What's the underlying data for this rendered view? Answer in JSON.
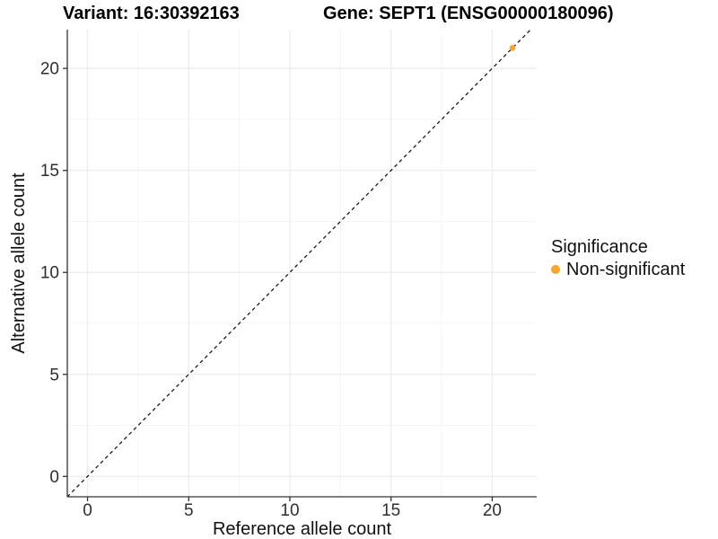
{
  "chart_data": {
    "type": "scatter",
    "title_variant": "Variant: 16:30392163",
    "title_gene": "Gene: SEPT1 (ENSG00000180096)",
    "xlabel": "Reference allele count",
    "ylabel": "Alternative allele count",
    "xlim": [
      -1,
      22.2
    ],
    "ylim": [
      -1,
      21.9
    ],
    "xticks": [
      0,
      5,
      10,
      15,
      20
    ],
    "yticks": [
      0,
      5,
      10,
      15,
      20
    ],
    "xminor": [
      2.5,
      7.5,
      12.5,
      17.5
    ],
    "yminor": [
      2.5,
      7.5,
      12.5,
      17.5
    ],
    "grid": "major+minor",
    "abline": {
      "slope": 1,
      "intercept": 0,
      "style": "dashed",
      "color": "#1a1a1a"
    },
    "series": [
      {
        "name": "Non-significant",
        "color": "#F9A42B",
        "points": [
          {
            "x": 21,
            "y": 21
          }
        ]
      }
    ],
    "legend": {
      "title": "Significance",
      "position": "right",
      "entries": [
        {
          "label": "Non-significant",
          "color": "#F9A42B"
        }
      ]
    }
  },
  "colors": {
    "background": "#FFFFFF",
    "axis_line": "#333333",
    "tick_text": "#2e2e2e",
    "grid_major": "#EBEBEB",
    "grid_minor": "#F4F4F4",
    "point": "#F9A42B"
  }
}
